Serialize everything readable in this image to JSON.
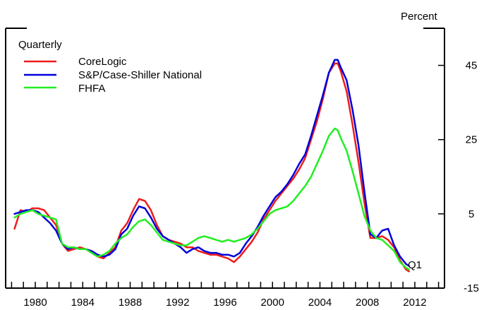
{
  "chart_data": {
    "type": "line",
    "unit_label": "Percent",
    "legend_title": "Quarterly",
    "legend_position": "top-left",
    "grid": false,
    "end_annotation": "Q1",
    "xlim": [
      1977.5,
      2014.5
    ],
    "ylim": [
      -15,
      55
    ],
    "x_ticks": [
      1980,
      1984,
      1988,
      1992,
      1996,
      2000,
      2004,
      2008,
      2012
    ],
    "x_tick_labels": [
      "1980",
      "1984",
      "1988",
      "1992",
      "1996",
      "2000",
      "2004",
      "2008",
      "2012"
    ],
    "y_ticks": [
      -15,
      5,
      25,
      45
    ],
    "y_tick_labels": [
      "-15",
      "5",
      "25",
      "45"
    ],
    "series": [
      {
        "name": "CoreLogic",
        "color": "#ee1c1c",
        "x": [
          1978.25,
          1978.75,
          1979.25,
          1979.75,
          1980.25,
          1980.75,
          1981.25,
          1981.75,
          1982.25,
          1982.75,
          1983.25,
          1983.75,
          1984.25,
          1984.75,
          1985.25,
          1985.75,
          1986.25,
          1986.75,
          1987.25,
          1987.75,
          1988.25,
          1988.75,
          1989.25,
          1989.75,
          1990.25,
          1990.75,
          1991.25,
          1991.75,
          1992.25,
          1992.75,
          1993.25,
          1993.75,
          1994.25,
          1994.75,
          1995.25,
          1995.75,
          1996.25,
          1996.75,
          1997.25,
          1997.75,
          1998.25,
          1998.75,
          1999.25,
          1999.75,
          2000.25,
          2000.75,
          2001.25,
          2001.75,
          2002.25,
          2002.75,
          2003.25,
          2003.75,
          2004.25,
          2004.75,
          2005.25,
          2005.5,
          2005.75,
          2006.25,
          2006.75,
          2007.25,
          2007.75,
          2008.25,
          2008.75,
          2009.25,
          2009.75,
          2010.25,
          2010.75,
          2011.25,
          2011.5
        ],
        "values": [
          1.0,
          6.0,
          5.5,
          6.5,
          6.5,
          6.0,
          4.0,
          2.0,
          -3.0,
          -5.0,
          -4.5,
          -4.0,
          -4.5,
          -5.5,
          -6.5,
          -7.0,
          -5.5,
          -4.0,
          0.5,
          2.5,
          6.0,
          9.0,
          8.5,
          6.0,
          2.0,
          -1.0,
          -2.0,
          -2.5,
          -3.0,
          -4.0,
          -4.0,
          -5.0,
          -5.5,
          -6.0,
          -6.0,
          -6.5,
          -7.0,
          -8.0,
          -6.5,
          -4.5,
          -2.5,
          0.0,
          3.5,
          6.0,
          8.5,
          10.5,
          12.5,
          14.5,
          17.0,
          20.0,
          25.0,
          30.0,
          36.0,
          43.0,
          45.5,
          45.5,
          43.5,
          38.0,
          29.0,
          19.0,
          8.0,
          -1.5,
          -1.5,
          -1.0,
          -2.0,
          -4.0,
          -7.5,
          -10.0,
          -10.5
        ]
      },
      {
        "name": "S&P/Case-Shiller National",
        "color": "#0000dd",
        "x": [
          1978.25,
          1978.75,
          1979.25,
          1979.75,
          1980.25,
          1980.75,
          1981.25,
          1981.75,
          1982.25,
          1982.75,
          1983.25,
          1983.75,
          1984.25,
          1984.75,
          1985.25,
          1985.75,
          1986.25,
          1986.75,
          1987.25,
          1987.75,
          1988.25,
          1988.75,
          1989.25,
          1989.75,
          1990.25,
          1990.75,
          1991.25,
          1991.75,
          1992.25,
          1992.75,
          1993.25,
          1993.75,
          1994.25,
          1994.75,
          1995.25,
          1995.75,
          1996.25,
          1996.75,
          1997.25,
          1997.75,
          1998.25,
          1998.75,
          1999.25,
          1999.75,
          2000.25,
          2000.75,
          2001.25,
          2001.75,
          2002.25,
          2002.75,
          2003.25,
          2003.75,
          2004.25,
          2004.75,
          2005.25,
          2005.5,
          2005.75,
          2006.25,
          2006.75,
          2007.25,
          2007.75,
          2008.25,
          2008.75,
          2009.25,
          2009.75,
          2010.25,
          2010.75,
          2011.25,
          2011.5
        ],
        "values": [
          5.0,
          5.5,
          6.0,
          6.0,
          5.5,
          4.0,
          2.5,
          0.5,
          -3.0,
          -4.5,
          -4.0,
          -4.5,
          -4.5,
          -5.0,
          -6.0,
          -6.5,
          -6.0,
          -4.5,
          -0.5,
          1.0,
          4.5,
          7.0,
          6.5,
          4.0,
          1.0,
          -1.0,
          -2.0,
          -3.0,
          -4.0,
          -5.5,
          -4.5,
          -4.0,
          -5.0,
          -5.5,
          -5.5,
          -6.0,
          -6.0,
          -6.5,
          -5.5,
          -3.0,
          -1.0,
          1.5,
          4.5,
          7.0,
          9.5,
          11.0,
          13.0,
          15.5,
          18.5,
          21.0,
          26.0,
          31.5,
          37.0,
          43.0,
          46.5,
          46.5,
          44.5,
          41.0,
          33.0,
          23.5,
          11.0,
          -0.5,
          -1.5,
          0.5,
          1.0,
          -3.5,
          -6.5,
          -8.5,
          -9.0
        ]
      },
      {
        "name": "FHFA",
        "color": "#22ee22",
        "x": [
          1978.25,
          1978.75,
          1979.25,
          1979.75,
          1980.25,
          1980.75,
          1981.25,
          1981.75,
          1982.25,
          1982.75,
          1983.25,
          1983.75,
          1984.25,
          1984.75,
          1985.25,
          1985.75,
          1986.25,
          1986.75,
          1987.25,
          1987.75,
          1988.25,
          1988.75,
          1989.25,
          1989.75,
          1990.25,
          1990.75,
          1991.25,
          1991.75,
          1992.25,
          1992.75,
          1993.25,
          1993.75,
          1994.25,
          1994.75,
          1995.25,
          1995.75,
          1996.25,
          1996.75,
          1997.25,
          1997.75,
          1998.25,
          1998.75,
          1999.25,
          1999.75,
          2000.25,
          2000.75,
          2001.25,
          2001.75,
          2002.25,
          2002.75,
          2003.25,
          2003.75,
          2004.25,
          2004.75,
          2005.25,
          2005.5,
          2005.75,
          2006.25,
          2006.75,
          2007.25,
          2007.75,
          2008.25,
          2008.75,
          2009.25,
          2009.75,
          2010.25,
          2010.75,
          2011.25,
          2011.5
        ],
        "values": [
          4.0,
          5.0,
          5.5,
          6.0,
          5.0,
          4.5,
          4.0,
          3.5,
          -3.0,
          -4.0,
          -4.0,
          -4.5,
          -4.5,
          -5.5,
          -6.5,
          -6.0,
          -5.0,
          -3.0,
          -1.5,
          -0.5,
          1.5,
          3.0,
          3.5,
          2.0,
          0.0,
          -2.0,
          -2.5,
          -3.0,
          -3.5,
          -3.5,
          -2.5,
          -1.5,
          -1.0,
          -1.5,
          -2.0,
          -2.5,
          -2.0,
          -2.5,
          -2.0,
          -1.5,
          -0.5,
          1.0,
          3.0,
          5.0,
          6.0,
          6.5,
          7.0,
          8.5,
          10.5,
          12.5,
          15.0,
          18.5,
          22.0,
          26.0,
          28.0,
          27.5,
          25.5,
          22.0,
          16.5,
          10.5,
          4.5,
          0.5,
          -1.5,
          -2.0,
          -3.5,
          -5.0,
          -8.0,
          -9.5,
          -10.0
        ]
      }
    ]
  }
}
